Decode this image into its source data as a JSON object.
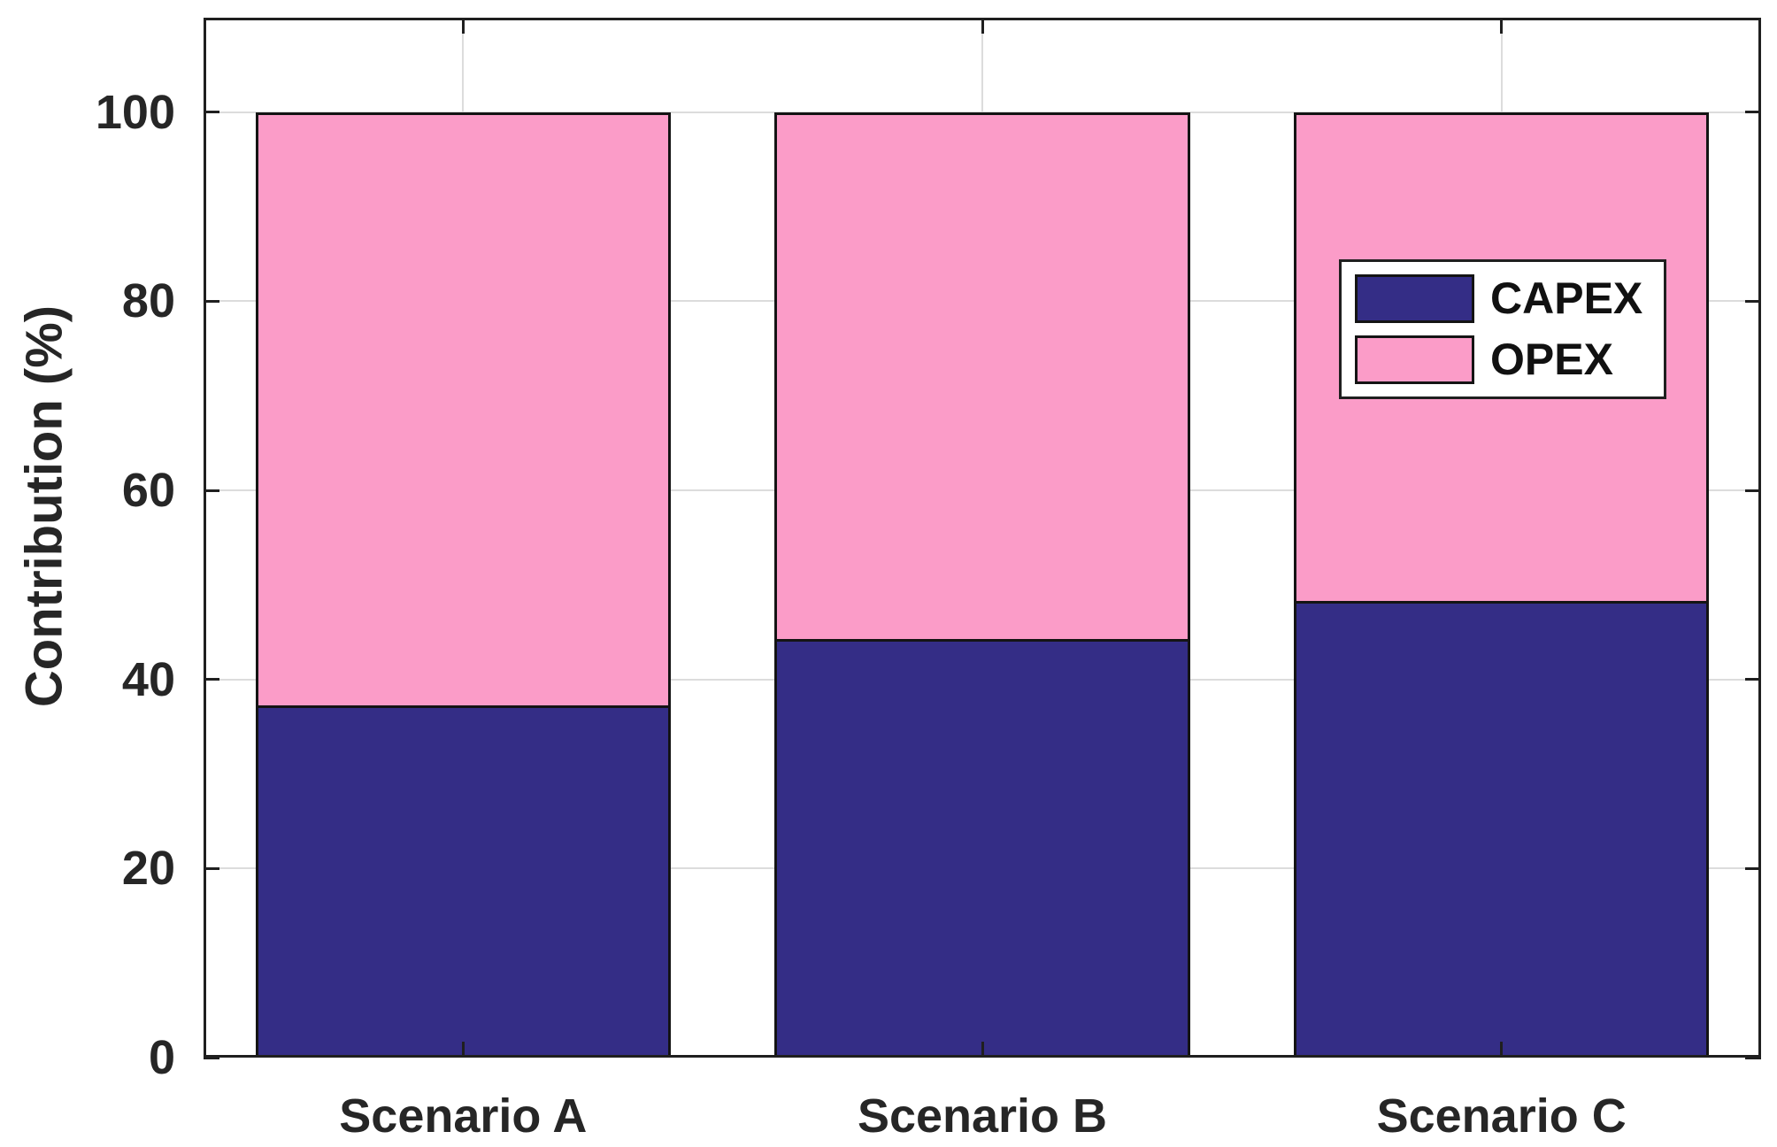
{
  "chart_data": {
    "type": "bar",
    "stacked": true,
    "title": "",
    "categories": [
      "Scenario A",
      "Scenario B",
      "Scenario C"
    ],
    "series": [
      {
        "name": "CAPEX",
        "values": [
          37,
          44,
          48
        ],
        "color": "#342D86"
      },
      {
        "name": "OPEX",
        "values": [
          63,
          56,
          52
        ],
        "color": "#FB9CC8"
      }
    ],
    "xlabel": "",
    "ylabel": "Contribution (%)",
    "yticks": [
      0,
      20,
      40,
      60,
      80,
      100
    ],
    "ylim": [
      0,
      110
    ],
    "grid": true,
    "bar_width_fraction": 0.8,
    "legend": {
      "entries": [
        "CAPEX",
        "OPEX"
      ],
      "position": "upper-right-inside"
    },
    "colors": {
      "axis": "#1F1F1F",
      "bar_edge": "#141414",
      "grid": "#DCDCDC",
      "text": "#262626",
      "background": "#FFFFFF",
      "legend_border": "#1F1F1F"
    }
  }
}
